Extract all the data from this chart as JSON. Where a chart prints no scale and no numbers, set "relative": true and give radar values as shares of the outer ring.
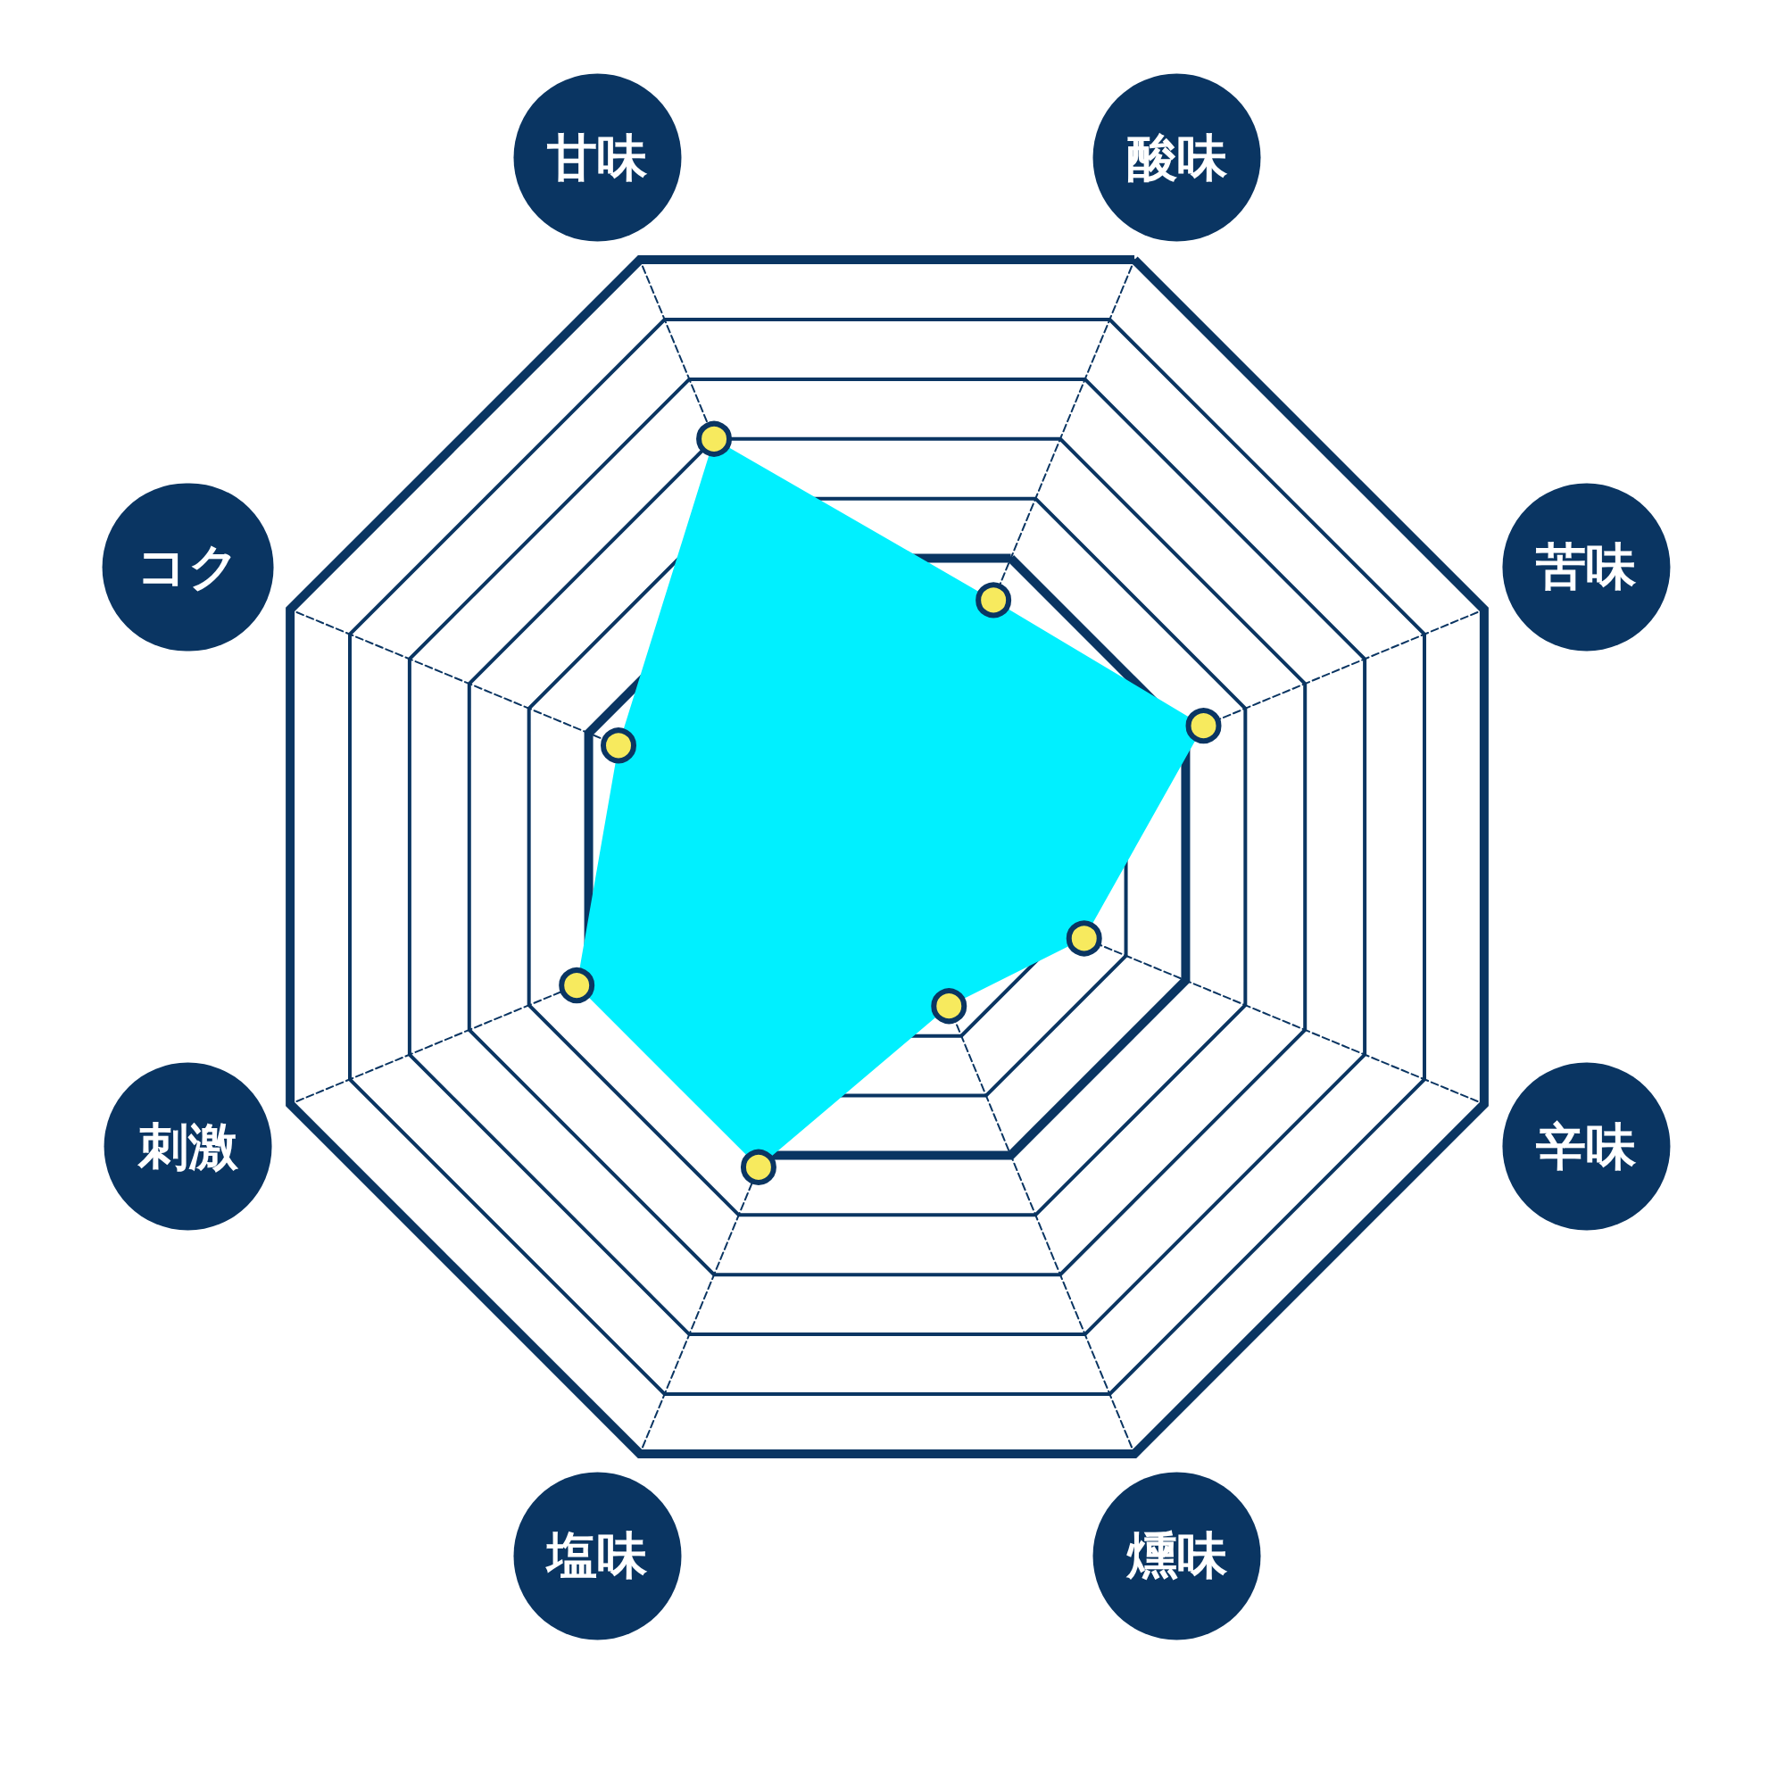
{
  "chart_data": {
    "type": "radar",
    "relative": true,
    "categories": [
      "酸味",
      "苦味",
      "辛味",
      "燻味",
      "塩味",
      "刺激",
      "コク",
      "甘味"
    ],
    "series": [
      {
        "color": "#00f0ff",
        "values": [
          0.43,
          0.53,
          0.33,
          0.25,
          0.52,
          0.52,
          0.45,
          0.7
        ]
      }
    ],
    "marker": "circle",
    "grid": true
  }
}
